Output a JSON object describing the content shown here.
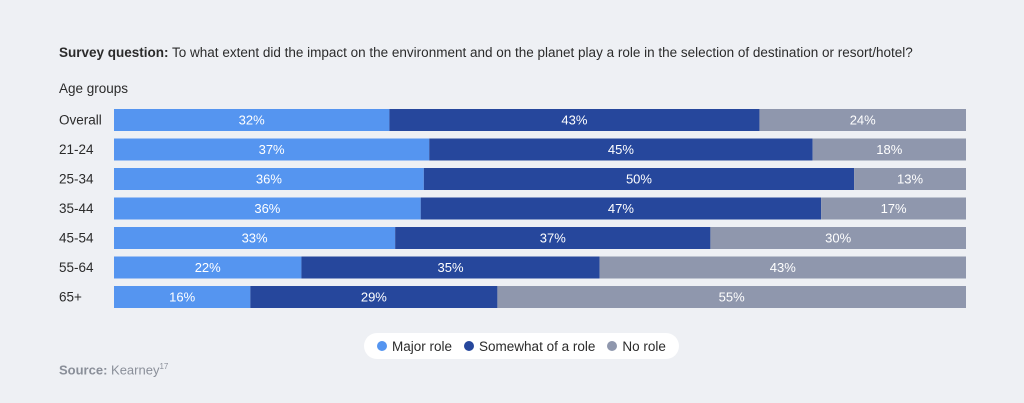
{
  "header": {
    "question_label": "Survey question:",
    "question_text": " To what extent did the impact on the environment and on the planet play a role in the selection of destination or resort/hotel?"
  },
  "footer": {
    "source_label": "Source:",
    "source_text": " Kearney",
    "source_note": "17"
  },
  "colors": {
    "major_role": "#5595f0",
    "somewhat_of_a_role": "#26479c",
    "no_role": "#8f97ad"
  },
  "chart_data": {
    "type": "bar",
    "orientation": "horizontal",
    "stacked": true,
    "ylabel": "Age groups",
    "categories": [
      "Overall",
      "21-24",
      "25-34",
      "35-44",
      "45-54",
      "55-64",
      "65+"
    ],
    "series": [
      {
        "name": "Major role",
        "values": [
          32,
          37,
          36,
          36,
          33,
          22,
          16
        ],
        "labels": [
          "32%",
          "37%",
          "36%",
          "36%",
          "33%",
          "22%",
          "16%"
        ],
        "color": "#5595f0"
      },
      {
        "name": "Somewhat of a role",
        "values": [
          43,
          45,
          50,
          47,
          37,
          35,
          29
        ],
        "labels": [
          "43%",
          "45%",
          "50%",
          "47%",
          "37%",
          "35%",
          "29%"
        ],
        "color": "#26479c"
      },
      {
        "name": "No role",
        "values": [
          24,
          18,
          13,
          17,
          30,
          43,
          55
        ],
        "labels": [
          "24%",
          "18%",
          "13%",
          "17%",
          "30%",
          "43%",
          "55%"
        ],
        "color": "#8f97ad"
      }
    ],
    "legend_position": "bottom-center",
    "grid": false
  }
}
